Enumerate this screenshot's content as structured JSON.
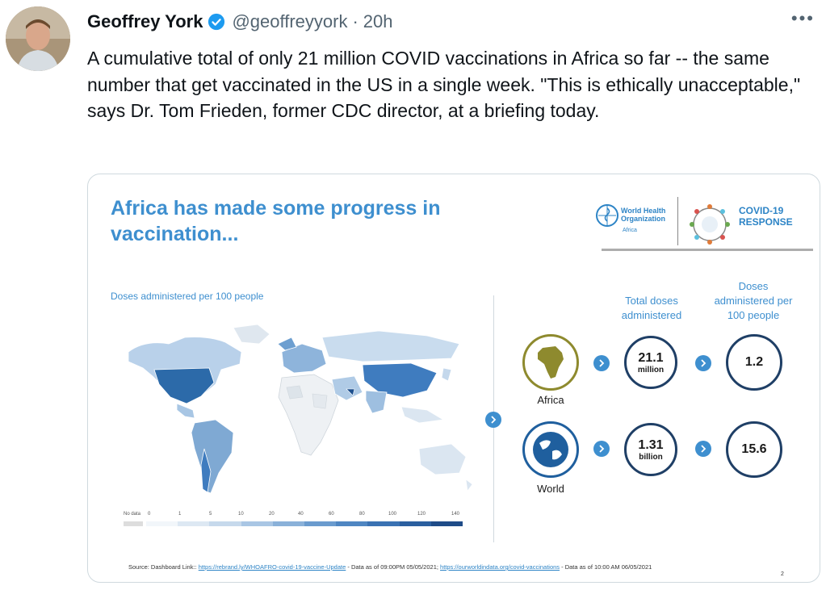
{
  "tweet": {
    "author_name": "Geoffrey York",
    "handle": "@geoffreyyork",
    "separator": "·",
    "time": "20h",
    "more_label": "•••",
    "text": "A cumulative total of only 21 million COVID vaccinations in Africa so far -- the same number that get vaccinated in the US in a single week. \"This is ethically unacceptable,\" says Dr. Tom Frieden, former CDC director, at a briefing today."
  },
  "slide": {
    "title": "Africa has made some progress in vaccination...",
    "who_name_line1": "World Health",
    "who_name_line2": "Organization",
    "who_region": "Africa",
    "covid_line1": "COVID-19",
    "covid_line2": "RESPONSE",
    "map_label": "Doses administered per 100 people",
    "legend_ticks": [
      "No data",
      "0",
      "1",
      "5",
      "10",
      "20",
      "40",
      "60",
      "80",
      "100",
      "120",
      "140"
    ],
    "col_total_doses": "Total doses administered",
    "col_per_100": "Doses administered per 100 people",
    "africa": {
      "label": "Africa",
      "total": "21.1",
      "total_unit": "million",
      "per_100": "1.2"
    },
    "world": {
      "label": "World",
      "total": "1.31",
      "total_unit": "billion",
      "per_100": "15.6"
    },
    "source_prefix": "Source: Dashboard Link:: ",
    "source_link1": "https://rebrand.ly/WHOAFRO-covid-19-vaccine-Update",
    "source_mid": " - Data as of 09:00PM 05/05/2021; ",
    "source_link2": "https://ourworldindata.org/covid-vaccinations",
    "source_suffix": " - Data as of 10:00 AM 06/05/2021",
    "page_number": "2"
  },
  "colors": {
    "accent_blue": "#3e8fcf",
    "africa_circle": "#8e8a2e",
    "world_circle": "#1f5f9e",
    "verified": "#1d9bf0"
  }
}
